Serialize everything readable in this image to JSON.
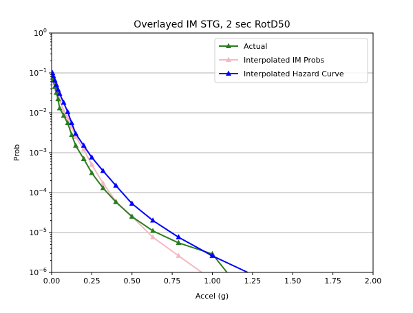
{
  "chart_data": {
    "type": "line",
    "title": "Overlayed IM STG, 2 sec RotD50",
    "xlabel": "Accel (g)",
    "ylabel": "Prob",
    "xlim": [
      0,
      2.0
    ],
    "ylim": [
      1e-06,
      1
    ],
    "yscale": "log",
    "grid": "horizontal-major",
    "legend_placement": "top-right",
    "xticks": [
      "0.00",
      "0.25",
      "0.50",
      "0.75",
      "1.00",
      "1.25",
      "1.50",
      "1.75",
      "2.00"
    ],
    "xtick_values": [
      0,
      0.25,
      0.5,
      0.75,
      1.0,
      1.25,
      1.5,
      1.75,
      2.0
    ],
    "yticks": [
      "10^0",
      "10^-1",
      "10^-2",
      "10^-3",
      "10^-4",
      "10^-5",
      "10^-6"
    ],
    "ytick_exps": [
      0,
      -1,
      -2,
      -3,
      -4,
      -5,
      -6
    ],
    "series": [
      {
        "name": "Actual",
        "color": "#2a7d1c",
        "x": [
          0.005,
          0.01,
          0.02,
          0.03,
          0.04,
          0.05,
          0.075,
          0.1,
          0.125,
          0.15,
          0.2,
          0.25,
          0.32,
          0.4,
          0.5,
          0.63,
          0.79,
          1.0,
          1.1
        ],
        "y": [
          0.08,
          0.065,
          0.045,
          0.032,
          0.022,
          0.013,
          0.0085,
          0.0055,
          0.0028,
          0.0015,
          0.0007,
          0.00031,
          0.00013,
          5.8e-05,
          2.5e-05,
          1.1e-05,
          5.5e-06,
          2.9e-06,
          9e-07
        ],
        "markers": [
          true,
          true,
          true,
          true,
          true,
          true,
          true,
          true,
          true,
          true,
          true,
          true,
          true,
          true,
          true,
          true,
          true,
          true,
          false
        ]
      },
      {
        "name": "Interpolated IM Probs",
        "color": "#f4b8c2",
        "x": [
          0.005,
          0.01,
          0.02,
          0.03,
          0.04,
          0.05,
          0.075,
          0.1,
          0.125,
          0.15,
          0.2,
          0.25,
          0.32,
          0.4,
          0.5,
          0.63,
          0.79,
          0.95
        ],
        "y": [
          0.09,
          0.075,
          0.055,
          0.04,
          0.03,
          0.021,
          0.011,
          0.0075,
          0.0045,
          0.0025,
          0.0012,
          0.0005,
          0.00017,
          6e-05,
          2.5e-05,
          7.6e-06,
          2.6e-06,
          9e-07
        ],
        "markers": [
          true,
          true,
          true,
          true,
          true,
          true,
          true,
          true,
          true,
          true,
          true,
          true,
          true,
          true,
          true,
          true,
          true,
          false
        ]
      },
      {
        "name": "Interpolated Hazard Curve",
        "color": "#0000ff",
        "x": [
          0.005,
          0.01,
          0.02,
          0.03,
          0.04,
          0.05,
          0.075,
          0.1,
          0.125,
          0.15,
          0.2,
          0.25,
          0.32,
          0.4,
          0.5,
          0.63,
          0.79,
          1.0,
          1.22
        ],
        "y": [
          0.1,
          0.085,
          0.065,
          0.05,
          0.038,
          0.03,
          0.018,
          0.0105,
          0.0055,
          0.003,
          0.0015,
          0.00076,
          0.00035,
          0.00015,
          5.3e-05,
          2e-05,
          7.6e-06,
          2.6e-06,
          1e-06
        ],
        "markers": [
          true,
          true,
          true,
          true,
          true,
          true,
          true,
          true,
          true,
          true,
          true,
          true,
          true,
          true,
          true,
          true,
          true,
          true,
          false
        ]
      }
    ]
  }
}
